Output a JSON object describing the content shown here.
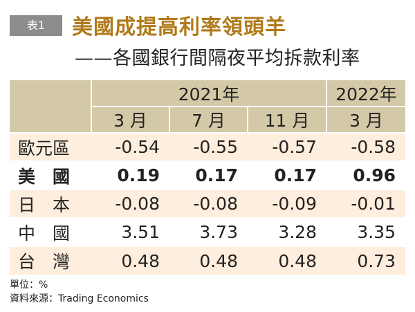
{
  "badge": "表1",
  "title": "美國成提高利率領頭羊",
  "subtitle": "——各國銀行間隔夜平均拆款利率",
  "table": {
    "years": [
      "2021年",
      "2022年"
    ],
    "months": [
      "3 月",
      "7 月",
      "11 月",
      "3 月"
    ],
    "rows": [
      {
        "label": "歐元區",
        "values": [
          "-0.54",
          "-0.55",
          "-0.57",
          "-0.58"
        ]
      },
      {
        "label": "美　國",
        "values": [
          "0.19",
          "0.17",
          "0.17",
          "0.96"
        ]
      },
      {
        "label": "日　本",
        "values": [
          "-0.08",
          "-0.08",
          "-0.09",
          "-0.01"
        ]
      },
      {
        "label": "中　國",
        "values": [
          "3.51",
          "3.73",
          "3.28",
          "3.35"
        ]
      },
      {
        "label": "台　灣",
        "values": [
          "0.48",
          "0.48",
          "0.48",
          "0.73"
        ]
      }
    ]
  },
  "notes": {
    "unit": "單位：%",
    "source": "資料來源：Trading Economics"
  }
}
